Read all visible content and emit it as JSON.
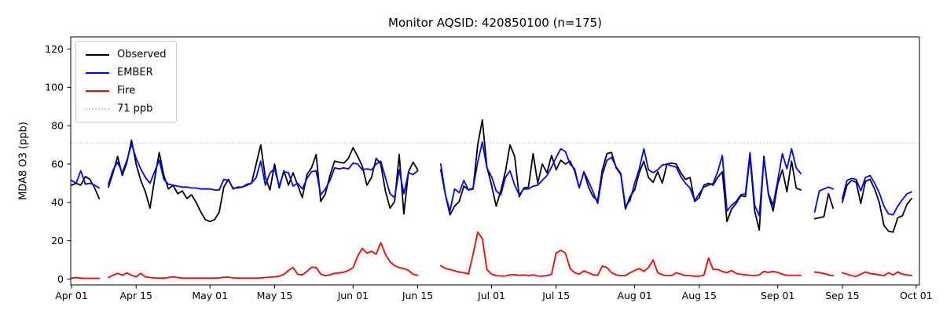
{
  "title": "Monitor AQSID: 420850100 (n=175)",
  "axes": {
    "ylabel": "MDA8 O3 (ppb)",
    "xlabel": "",
    "y_ticks": [
      0,
      20,
      40,
      60,
      80,
      100,
      120
    ],
    "x_ticks": [
      {
        "label": "Apr 01",
        "day": 0
      },
      {
        "label": "Apr 15",
        "day": 14
      },
      {
        "label": "May 01",
        "day": 30
      },
      {
        "label": "May 15",
        "day": 44
      },
      {
        "label": "Jun 01",
        "day": 61
      },
      {
        "label": "Jun 15",
        "day": 75
      },
      {
        "label": "Jul 01",
        "day": 91
      },
      {
        "label": "Jul 15",
        "day": 105
      },
      {
        "label": "Aug 01",
        "day": 122
      },
      {
        "label": "Aug 15",
        "day": 136
      },
      {
        "label": "Sep 01",
        "day": 153
      },
      {
        "label": "Sep 15",
        "day": 167
      },
      {
        "label": "Oct 01",
        "day": 183
      }
    ]
  },
  "legend": {
    "entries": [
      {
        "label": "Observed",
        "color": "#000000",
        "style": "solid"
      },
      {
        "label": "EMBER",
        "color": "#0000ff",
        "style": "solid"
      },
      {
        "label": "Fire",
        "color": "#ff0000",
        "style": "solid"
      },
      {
        "label": "71 ppb",
        "color": "#c8c8c8",
        "style": "dotted"
      }
    ]
  },
  "chart_data": {
    "type": "line",
    "title": "Monitor AQSID: 420850100 (n=175)",
    "xlabel": "",
    "ylabel": "MDA8 O3 (ppb)",
    "x_start": "Apr 01",
    "x_end": "Oct 01",
    "x_interval": "1 day",
    "n_points": 175,
    "ylim": [
      -3,
      126.5
    ],
    "grid": false,
    "legend_position": "upper-left",
    "reference_line": {
      "value": 71,
      "label": "71 ppb",
      "color": "#c8c8c8",
      "style": "dotted"
    },
    "missing_days": [
      "Apr 08",
      "Jun 16",
      "Jun 17",
      "Jun 18",
      "Jun 19",
      "Sep 07",
      "Sep 08",
      "Sep 14",
      "Oct 01"
    ],
    "series": [
      {
        "name": "Observed",
        "color": "#000000",
        "values": [
          49,
          50,
          49,
          53.5,
          52,
          47.5,
          42,
          null,
          48,
          55.5,
          64,
          54,
          61,
          72.5,
          60,
          51.5,
          45.5,
          37,
          52,
          66,
          54,
          47,
          49,
          44.5,
          46,
          42,
          44,
          40,
          35,
          31,
          30,
          31,
          35,
          48,
          52,
          47,
          48,
          48,
          49,
          50,
          60,
          70,
          53,
          46.5,
          60,
          47.5,
          56.5,
          49,
          55.5,
          49,
          42.5,
          54.5,
          58,
          65,
          40.5,
          44.5,
          54,
          61.5,
          61,
          60.5,
          63,
          68.5,
          64,
          59,
          49,
          53,
          63,
          60,
          46,
          37,
          40.5,
          65,
          34,
          56,
          61,
          57,
          null,
          null,
          null,
          null,
          57,
          44,
          33.5,
          38,
          40.5,
          48.5,
          46.5,
          47,
          70,
          83,
          58.5,
          49,
          38,
          46,
          56,
          70,
          64,
          43,
          47.5,
          48,
          65.5,
          50,
          60,
          55.5,
          64.5,
          57,
          62,
          60,
          61.5,
          56.5,
          47.5,
          56,
          48,
          43,
          41,
          57,
          65.5,
          66,
          58,
          54.5,
          36.5,
          43,
          46.5,
          55.5,
          61.5,
          53,
          50.5,
          56,
          50,
          60,
          60.5,
          60,
          55.5,
          52,
          53,
          40.5,
          42.5,
          49,
          50,
          49,
          53,
          56,
          30,
          36.5,
          39.5,
          43.5,
          43,
          64,
          35.5,
          25.5,
          64,
          44,
          35.5,
          49.5,
          57,
          45.5,
          61.5,
          47.5,
          46.5,
          null,
          null,
          31.5,
          32,
          32.5,
          44.5,
          37,
          null,
          40,
          49,
          51.5,
          50.5,
          39.5,
          51,
          52,
          47,
          40,
          28,
          25,
          24.5,
          32,
          33,
          39,
          42,
          null
        ]
      },
      {
        "name": "EMBER",
        "color": "#0000ff",
        "values": [
          51.5,
          50,
          56.5,
          49.5,
          50,
          49,
          47.5,
          null,
          49.5,
          57,
          61,
          55.5,
          62,
          70.5,
          63,
          57.5,
          53,
          50,
          56,
          62,
          52,
          49.5,
          49,
          48.5,
          48,
          48,
          47.5,
          47.5,
          47,
          47,
          47,
          46.5,
          46.5,
          52,
          51.5,
          47.5,
          47.5,
          48,
          49.5,
          50,
          53,
          61.5,
          49,
          55.5,
          57.5,
          48.5,
          56,
          55.5,
          48.5,
          50,
          47,
          52.5,
          56,
          56.5,
          44,
          47,
          51.5,
          58,
          57.5,
          58,
          57.5,
          60.5,
          60,
          57,
          57.5,
          57,
          60,
          61.5,
          53,
          44.5,
          42.5,
          57,
          44.5,
          55.5,
          54.5,
          56.5,
          null,
          null,
          null,
          null,
          60,
          44,
          35.5,
          47,
          45,
          51.5,
          46.5,
          47.5,
          61,
          71.5,
          58,
          53.5,
          46,
          44,
          53,
          56.5,
          49,
          44,
          47,
          47,
          48.5,
          49,
          51.5,
          54,
          58.5,
          63.5,
          68,
          66.5,
          60,
          57.5,
          47.5,
          56,
          51,
          45.5,
          39.5,
          54.5,
          62,
          63.5,
          58.5,
          55,
          38,
          41,
          50,
          57.5,
          68,
          57,
          55.5,
          57,
          59.5,
          60,
          59,
          58.5,
          53.5,
          50,
          47.5,
          41,
          44.5,
          48,
          49,
          50,
          56,
          64.5,
          35.5,
          38.5,
          40.5,
          44,
          44.5,
          66,
          38.5,
          33,
          63,
          44.5,
          38.5,
          51.5,
          65.5,
          57.5,
          68,
          58,
          55,
          null,
          null,
          35,
          46,
          47,
          48,
          47,
          null,
          42,
          51.5,
          52.5,
          52,
          46,
          53,
          54,
          50,
          45,
          38,
          34,
          33.5,
          38,
          41.5,
          44.5,
          45.5,
          null
        ]
      },
      {
        "name": "Fire",
        "color": "#ff0000",
        "values": [
          0.5,
          0.8,
          0.5,
          0.4,
          0.4,
          0.4,
          0.4,
          null,
          0.8,
          2,
          3,
          2,
          3.2,
          2,
          1.2,
          3,
          1.2,
          0.8,
          0.6,
          0.5,
          0.5,
          0.8,
          1.2,
          0.8,
          0.5,
          0.5,
          0.5,
          0.5,
          0.5,
          0.5,
          0.5,
          0.5,
          0.6,
          1,
          1,
          0.6,
          0.5,
          0.5,
          0.5,
          0.5,
          0.5,
          0.6,
          0.8,
          1,
          1.2,
          1.5,
          2.5,
          4.5,
          6,
          2.5,
          2.2,
          4,
          6.2,
          6,
          2.6,
          1.8,
          2.2,
          3,
          3.2,
          3.6,
          4.5,
          6,
          12,
          16,
          13.5,
          14.5,
          13,
          19,
          13,
          9,
          7,
          6,
          5.5,
          4.5,
          2.5,
          2,
          null,
          null,
          null,
          null,
          7,
          5.5,
          5,
          4.3,
          3.7,
          3.3,
          2.7,
          13,
          24.5,
          21,
          5,
          2.6,
          1.8,
          1.6,
          1.6,
          2.2,
          2.3,
          2,
          2.2,
          1.8,
          2.2,
          1.6,
          1.5,
          1.8,
          2.6,
          13.5,
          15,
          13.5,
          5.6,
          3.3,
          2.6,
          4.3,
          3.3,
          2.2,
          2,
          6.8,
          6,
          3.3,
          2.2,
          1.8,
          1.8,
          3.3,
          4.5,
          5.5,
          4,
          6,
          10,
          3.3,
          2.2,
          1.8,
          1.8,
          3.3,
          2.6,
          1.8,
          1.8,
          1.5,
          1.5,
          2,
          11,
          5,
          5,
          4,
          3.3,
          4.5,
          3,
          2.5,
          2.2,
          2,
          1.8,
          2.2,
          4,
          3.5,
          4,
          3.5,
          2.5,
          2,
          2,
          2,
          2,
          null,
          null,
          3.7,
          3.3,
          2.9,
          2.2,
          1.8,
          null,
          3.3,
          2.6,
          1.8,
          1.4,
          2.6,
          3.7,
          2.9,
          2.6,
          2.2,
          1.8,
          3.3,
          2.2,
          3.7,
          2.6,
          2.2,
          1.8,
          null
        ]
      }
    ]
  }
}
